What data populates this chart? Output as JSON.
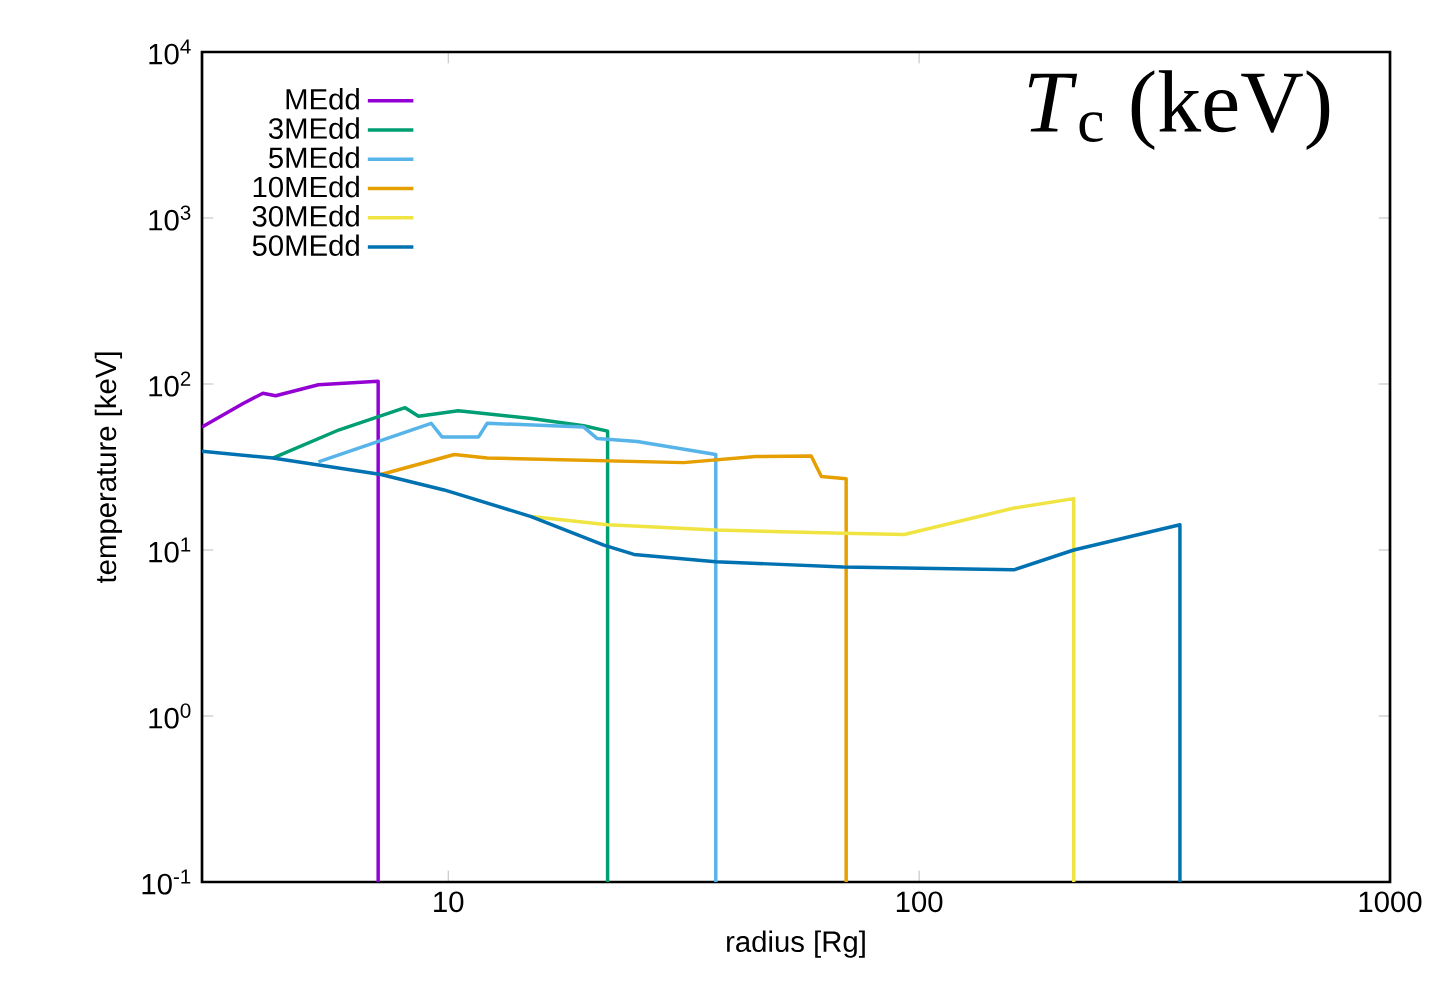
{
  "chart_data": {
    "type": "line",
    "title": "*T*$_{c}$ (keV)",
    "xlabel": "radius [Rg]",
    "ylabel": "temperature [keV]",
    "log": "xy",
    "legend": "top left",
    "grid": false,
    "marker": "none",
    "line_style": "solid",
    "xlim": [
      3,
      1000
    ],
    "xticks": [
      10,
      100,
      1000
    ],
    "ylim": [
      0.1,
      10000
    ],
    "yticks": [
      {
        "value": 0.1,
        "label": "10$^{-1}$"
      },
      {
        "value": 1,
        "label": "10$^{0}$"
      },
      {
        "value": 10,
        "label": "10$^{1}$"
      },
      {
        "value": 100,
        "label": "10$^{2}$"
      },
      {
        "value": 1000,
        "label": "10$^{3}$"
      },
      {
        "value": 10000,
        "label": "10$^{4}$"
      }
    ],
    "series": [
      {
        "name": "MEdd",
        "color": "#9400d3",
        "x": [
          3,
          3.66,
          4.04,
          4.3,
          5.3,
          7.1,
          7.1
        ],
        "values": [
          55,
          76,
          88,
          85,
          99,
          104,
          0.1
        ]
      },
      {
        "name": "3MEdd",
        "color": "#009e73",
        "x": [
          4.24,
          5.87,
          8.1,
          8.65,
          10.5,
          15,
          19.4,
          21.8,
          21.8
        ],
        "values": [
          35.8,
          53,
          72,
          64,
          69,
          62,
          56,
          52,
          0.1
        ]
      },
      {
        "name": "5MEdd",
        "color": "#56b4e9",
        "x": [
          5.3,
          9.2,
          9.7,
          11.6,
          12.1,
          19.4,
          20.7,
          25.2,
          37,
          37
        ],
        "values": [
          34,
          58,
          48,
          48,
          58,
          55,
          47,
          45,
          37.6,
          0.1
        ]
      },
      {
        "name": "10MEdd",
        "color": "#e69f00",
        "x": [
          7.2,
          10.3,
          12.1,
          31.6,
          45,
          59,
          62,
          70,
          70
        ],
        "values": [
          28.5,
          37.6,
          35.8,
          33.6,
          36.6,
          36.8,
          27.7,
          26.9,
          0.1
        ]
      },
      {
        "name": "30MEdd",
        "color": "#f0e442",
        "x": [
          15,
          21.8,
          37,
          69,
          93,
          159,
          213,
          213
        ],
        "values": [
          15.9,
          14.2,
          13.2,
          12.6,
          12.4,
          17.9,
          20.4,
          0.1
        ]
      },
      {
        "name": "50MEdd",
        "color": "#0072b2",
        "x": [
          3,
          4.24,
          7.2,
          9.8,
          15,
          21.4,
          24.8,
          37,
          69,
          159,
          213,
          358,
          358
        ],
        "values": [
          39.3,
          35.8,
          28.5,
          23,
          15.9,
          10.7,
          9.4,
          8.5,
          7.9,
          7.6,
          10,
          14.2,
          0.1
        ]
      }
    ]
  }
}
